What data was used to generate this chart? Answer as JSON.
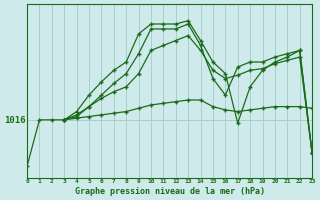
{
  "bg_color": "#ceeaea",
  "line_color": "#1a6b1a",
  "grid_color": "#aacfcf",
  "xlabel_text": "Graphe pression niveau de la mer (hPa)",
  "xlim": [
    0,
    23
  ],
  "ylim_min": 1012.5,
  "ylim_max": 1023.0,
  "y_ref": 1016,
  "lines": [
    {
      "x": [
        0,
        1,
        2,
        3,
        4,
        5,
        6,
        7,
        8,
        9,
        10,
        11,
        12,
        13,
        14,
        15,
        16,
        17,
        18,
        19,
        20,
        21,
        22,
        23
      ],
      "y": [
        1013.2,
        1016.0,
        1016.0,
        1016.0,
        1016.1,
        1016.2,
        1016.3,
        1016.4,
        1016.5,
        1016.7,
        1016.9,
        1017.0,
        1017.1,
        1017.2,
        1017.2,
        1016.8,
        1016.6,
        1016.5,
        1016.6,
        1016.7,
        1016.8,
        1016.8,
        1016.8,
        1016.7
      ]
    },
    {
      "x": [
        3,
        4,
        5,
        6,
        7,
        8,
        9,
        10,
        11,
        12,
        13,
        14,
        15,
        16,
        17,
        18,
        19,
        20,
        21,
        22,
        23
      ],
      "y": [
        1016.0,
        1016.3,
        1016.8,
        1017.3,
        1017.7,
        1018.0,
        1018.8,
        1020.2,
        1020.5,
        1020.8,
        1021.1,
        1020.2,
        1019.0,
        1018.5,
        1018.7,
        1019.0,
        1019.1,
        1019.4,
        1019.6,
        1019.8,
        1014.0
      ]
    },
    {
      "x": [
        3,
        4,
        5,
        6,
        7,
        8,
        9,
        10,
        11,
        12,
        13,
        14,
        15,
        16,
        17,
        18,
        19,
        20,
        21,
        22,
        23
      ],
      "y": [
        1016.0,
        1016.5,
        1017.5,
        1018.3,
        1019.0,
        1019.5,
        1021.2,
        1021.8,
        1021.8,
        1021.8,
        1022.0,
        1020.8,
        1019.5,
        1018.8,
        1015.8,
        1018.0,
        1019.0,
        1019.5,
        1019.8,
        1020.2,
        1014.0
      ]
    },
    {
      "x": [
        3,
        4,
        5,
        6,
        7,
        8,
        9,
        10,
        11,
        12,
        13,
        14,
        15,
        16,
        17,
        18,
        19,
        20,
        21,
        22,
        23
      ],
      "y": [
        1016.0,
        1016.2,
        1016.8,
        1017.5,
        1018.2,
        1018.8,
        1020.0,
        1021.5,
        1021.5,
        1021.5,
        1021.8,
        1020.5,
        1018.5,
        1017.5,
        1019.2,
        1019.5,
        1019.5,
        1019.8,
        1020.0,
        1020.2,
        1014.0
      ]
    }
  ]
}
